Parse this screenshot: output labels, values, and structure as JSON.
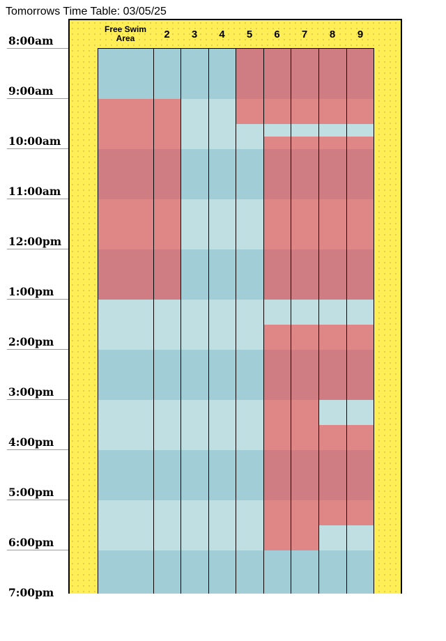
{
  "title": "Tomorrows Time Table: 03/05/25",
  "times": [
    "8:00am",
    "9:00am",
    "10:00am",
    "11:00am",
    "12:00pm",
    "1:00pm",
    "2:00pm",
    "3:00pm",
    "4:00pm",
    "5:00pm",
    "6:00pm",
    "7:00pm"
  ],
  "lanes": [
    "Free Swim Area",
    "2",
    "3",
    "4",
    "5",
    "6",
    "7",
    "8",
    "9"
  ],
  "colors": {
    "available_dark": "#a0cdd6",
    "available_light": "#c0dfe3",
    "booked_dark": "#cf7c83",
    "booked_light": "#df8687",
    "frame_background": "#ffee55"
  },
  "schedule": {
    "unit": "hours_from_8am",
    "columns": [
      {
        "lane": "Free Swim Area",
        "blocks": [
          [
            0,
            1,
            "available_dark"
          ],
          [
            1,
            2,
            "booked_light"
          ],
          [
            2,
            3,
            "booked_dark"
          ],
          [
            3,
            4,
            "booked_light"
          ],
          [
            4,
            5,
            "booked_dark"
          ],
          [
            5,
            6,
            "available_light"
          ],
          [
            6,
            7,
            "available_dark"
          ],
          [
            7,
            8,
            "available_light"
          ],
          [
            8,
            9,
            "available_dark"
          ],
          [
            9,
            10,
            "available_light"
          ],
          [
            10,
            11,
            "available_dark"
          ]
        ]
      },
      {
        "lane": "2",
        "blocks": [
          [
            0,
            1,
            "available_dark"
          ],
          [
            1,
            2,
            "booked_light"
          ],
          [
            2,
            3,
            "booked_dark"
          ],
          [
            3,
            4,
            "booked_light"
          ],
          [
            4,
            5,
            "booked_dark"
          ],
          [
            5,
            6,
            "available_light"
          ],
          [
            6,
            7,
            "available_dark"
          ],
          [
            7,
            8,
            "available_light"
          ],
          [
            8,
            9,
            "available_dark"
          ],
          [
            9,
            10,
            "available_light"
          ],
          [
            10,
            11,
            "available_dark"
          ]
        ]
      },
      {
        "lane": "3",
        "blocks": [
          [
            0,
            1,
            "available_dark"
          ],
          [
            1,
            2,
            "available_light"
          ],
          [
            2,
            3,
            "available_dark"
          ],
          [
            3,
            4,
            "available_light"
          ],
          [
            4,
            5,
            "available_dark"
          ],
          [
            5,
            6,
            "available_light"
          ],
          [
            6,
            7,
            "available_dark"
          ],
          [
            7,
            8,
            "available_light"
          ],
          [
            8,
            9,
            "available_dark"
          ],
          [
            9,
            10,
            "available_light"
          ],
          [
            10,
            11,
            "available_dark"
          ]
        ]
      },
      {
        "lane": "4",
        "blocks": [
          [
            0,
            1,
            "available_dark"
          ],
          [
            1,
            2,
            "available_light"
          ],
          [
            2,
            3,
            "available_dark"
          ],
          [
            3,
            4,
            "available_light"
          ],
          [
            4,
            5,
            "available_dark"
          ],
          [
            5,
            6,
            "available_light"
          ],
          [
            6,
            7,
            "available_dark"
          ],
          [
            7,
            8,
            "available_light"
          ],
          [
            8,
            9,
            "available_dark"
          ],
          [
            9,
            10,
            "available_light"
          ],
          [
            10,
            11,
            "available_dark"
          ]
        ]
      },
      {
        "lane": "5",
        "blocks": [
          [
            0,
            1,
            "booked_dark"
          ],
          [
            1,
            1.5,
            "booked_light"
          ],
          [
            1.5,
            2,
            "available_light"
          ],
          [
            2,
            3,
            "available_dark"
          ],
          [
            3,
            4,
            "available_light"
          ],
          [
            4,
            5,
            "available_dark"
          ],
          [
            5,
            6,
            "available_light"
          ],
          [
            6,
            7,
            "available_dark"
          ],
          [
            7,
            8,
            "available_light"
          ],
          [
            8,
            9,
            "available_dark"
          ],
          [
            9,
            10,
            "available_light"
          ],
          [
            10,
            11,
            "available_dark"
          ]
        ]
      },
      {
        "lane": "6",
        "blocks": [
          [
            0,
            1,
            "booked_dark"
          ],
          [
            1,
            1.5,
            "booked_light"
          ],
          [
            1.5,
            1.75,
            "available_light"
          ],
          [
            1.75,
            2,
            "booked_light"
          ],
          [
            2,
            3,
            "booked_dark"
          ],
          [
            3,
            4,
            "booked_light"
          ],
          [
            4,
            5,
            "booked_dark"
          ],
          [
            5,
            5.5,
            "available_light"
          ],
          [
            5.5,
            6,
            "booked_light"
          ],
          [
            6,
            7,
            "booked_dark"
          ],
          [
            7,
            8,
            "booked_light"
          ],
          [
            8,
            9,
            "booked_dark"
          ],
          [
            9,
            10,
            "booked_light"
          ],
          [
            10,
            11,
            "available_dark"
          ]
        ]
      },
      {
        "lane": "7",
        "blocks": [
          [
            0,
            1,
            "booked_dark"
          ],
          [
            1,
            1.5,
            "booked_light"
          ],
          [
            1.5,
            1.75,
            "available_light"
          ],
          [
            1.75,
            2,
            "booked_light"
          ],
          [
            2,
            3,
            "booked_dark"
          ],
          [
            3,
            4,
            "booked_light"
          ],
          [
            4,
            5,
            "booked_dark"
          ],
          [
            5,
            5.5,
            "available_light"
          ],
          [
            5.5,
            6,
            "booked_light"
          ],
          [
            6,
            7,
            "booked_dark"
          ],
          [
            7,
            8,
            "booked_light"
          ],
          [
            8,
            9,
            "booked_dark"
          ],
          [
            9,
            10,
            "booked_light"
          ],
          [
            10,
            11,
            "available_dark"
          ]
        ]
      },
      {
        "lane": "8",
        "blocks": [
          [
            0,
            1,
            "booked_dark"
          ],
          [
            1,
            1.5,
            "booked_light"
          ],
          [
            1.5,
            1.75,
            "available_light"
          ],
          [
            1.75,
            2,
            "booked_light"
          ],
          [
            2,
            3,
            "booked_dark"
          ],
          [
            3,
            4,
            "booked_light"
          ],
          [
            4,
            5,
            "booked_dark"
          ],
          [
            5,
            5.5,
            "available_light"
          ],
          [
            5.5,
            6,
            "booked_light"
          ],
          [
            6,
            7,
            "booked_dark"
          ],
          [
            7,
            7.5,
            "available_light"
          ],
          [
            7.5,
            8,
            "booked_light"
          ],
          [
            8,
            9,
            "booked_dark"
          ],
          [
            9,
            9.5,
            "booked_light"
          ],
          [
            9.5,
            10,
            "available_light"
          ],
          [
            10,
            11,
            "available_dark"
          ]
        ]
      },
      {
        "lane": "9",
        "blocks": [
          [
            0,
            1,
            "booked_dark"
          ],
          [
            1,
            1.5,
            "booked_light"
          ],
          [
            1.5,
            1.75,
            "available_light"
          ],
          [
            1.75,
            2,
            "booked_light"
          ],
          [
            2,
            3,
            "booked_dark"
          ],
          [
            3,
            4,
            "booked_light"
          ],
          [
            4,
            5,
            "booked_dark"
          ],
          [
            5,
            5.5,
            "available_light"
          ],
          [
            5.5,
            6,
            "booked_light"
          ],
          [
            6,
            7,
            "booked_dark"
          ],
          [
            7,
            7.5,
            "available_light"
          ],
          [
            7.5,
            8,
            "booked_light"
          ],
          [
            8,
            9,
            "booked_dark"
          ],
          [
            9,
            9.5,
            "booked_light"
          ],
          [
            9.5,
            10,
            "available_light"
          ],
          [
            10,
            11,
            "available_dark"
          ]
        ]
      }
    ]
  }
}
